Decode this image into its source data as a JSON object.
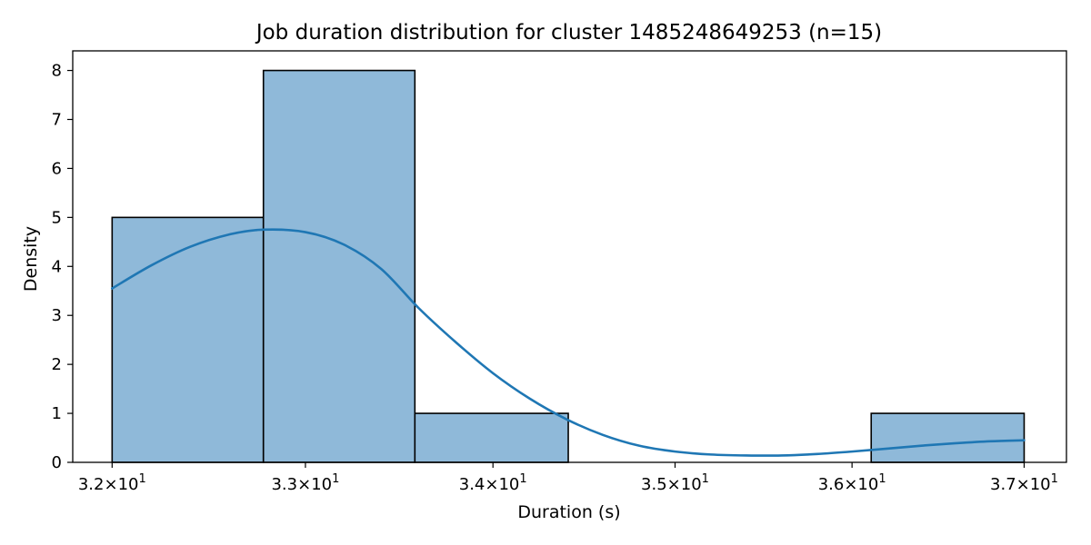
{
  "chart_data": {
    "type": "bar",
    "title": "Job duration distribution for cluster 1485248649253 (n=15)",
    "xlabel": "Duration (s)",
    "ylabel": "Density",
    "x_scale": "log",
    "xlim": [
      31.8,
      37.25
    ],
    "ylim": [
      0,
      8.4
    ],
    "grid": false,
    "x_ticks": [
      {
        "value": 32,
        "mantissa": "3.2",
        "base": "10",
        "exp": "1"
      },
      {
        "value": 33,
        "mantissa": "3.3",
        "base": "10",
        "exp": "1"
      },
      {
        "value": 34,
        "mantissa": "3.4",
        "base": "10",
        "exp": "1"
      },
      {
        "value": 35,
        "mantissa": "3.5",
        "base": "10",
        "exp": "1"
      },
      {
        "value": 36,
        "mantissa": "3.6",
        "base": "10",
        "exp": "1"
      },
      {
        "value": 37,
        "mantissa": "3.7",
        "base": "10",
        "exp": "1"
      }
    ],
    "y_ticks": [
      0,
      1,
      2,
      3,
      4,
      5,
      6,
      7,
      8
    ],
    "bins": [
      {
        "x0": 32.0,
        "x1": 32.78,
        "value": 5
      },
      {
        "x0": 32.78,
        "x1": 33.58,
        "value": 8
      },
      {
        "x0": 33.58,
        "x1": 34.41,
        "value": 1
      },
      {
        "x0": 34.41,
        "x1": 35.24,
        "value": 0
      },
      {
        "x0": 35.24,
        "x1": 36.11,
        "value": 0
      },
      {
        "x0": 36.11,
        "x1": 37.0,
        "value": 1
      }
    ],
    "kde": {
      "x": [
        32.0,
        32.2,
        32.4,
        32.6,
        32.78,
        33.0,
        33.2,
        33.4,
        33.6,
        33.8,
        34.0,
        34.2,
        34.4,
        34.6,
        34.8,
        35.0,
        35.2,
        35.4,
        35.6,
        35.8,
        36.0,
        36.2,
        36.4,
        36.6,
        36.8,
        37.0
      ],
      "y": [
        3.55,
        4.02,
        4.4,
        4.65,
        4.75,
        4.7,
        4.45,
        3.95,
        3.15,
        2.45,
        1.82,
        1.3,
        0.88,
        0.56,
        0.34,
        0.22,
        0.16,
        0.14,
        0.14,
        0.17,
        0.22,
        0.28,
        0.34,
        0.39,
        0.43,
        0.45
      ]
    },
    "colors": {
      "bar_fill": "#8fb9d9",
      "bar_edge": "#000000",
      "kde_line": "#1f77b4",
      "axes": "#000000",
      "background": "#ffffff"
    }
  }
}
